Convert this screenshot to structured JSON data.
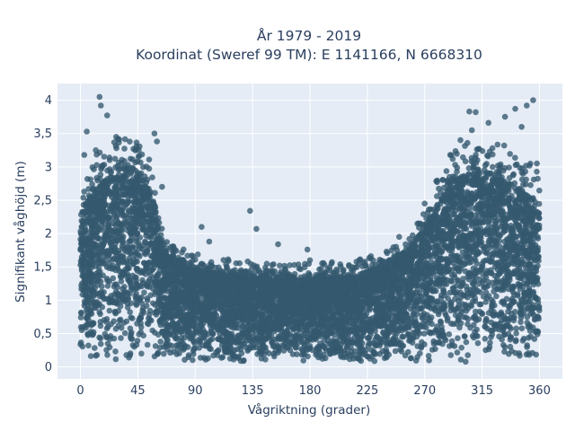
{
  "chart_data": {
    "type": "scatter",
    "title_line1": "År 1979 - 2019",
    "title_line2": "Koordinat (Sweref 99 TM): E 1141166, N 6668310",
    "xlabel": "Vågriktning (grader)",
    "ylabel": "Signifikant våghöjd (m)",
    "xlim": [
      -18,
      378
    ],
    "ylim": [
      -0.18,
      4.25
    ],
    "x_ticks": [
      0,
      45,
      90,
      135,
      180,
      225,
      270,
      315,
      360
    ],
    "x_tick_labels": [
      "0",
      "45",
      "90",
      "135",
      "180",
      "225",
      "270",
      "315",
      "360"
    ],
    "y_ticks": [
      0,
      0.5,
      1,
      1.5,
      2,
      2.5,
      3,
      3.5,
      4
    ],
    "y_tick_labels": [
      "0",
      "0,5",
      "1",
      "1,5",
      "2",
      "2,5",
      "3",
      "3,5",
      "4"
    ],
    "grid": true,
    "marker_color": "#34586e",
    "plot_bgcolor": "#e5ecf6",
    "envelope": [
      {
        "x": 0,
        "y": 2.3
      },
      {
        "x": 10,
        "y": 2.6
      },
      {
        "x": 20,
        "y": 2.8
      },
      {
        "x": 30,
        "y": 2.9
      },
      {
        "x": 40,
        "y": 2.9
      },
      {
        "x": 50,
        "y": 2.8
      },
      {
        "x": 58,
        "y": 2.4
      },
      {
        "x": 62,
        "y": 1.9
      },
      {
        "x": 70,
        "y": 1.6
      },
      {
        "x": 90,
        "y": 1.45
      },
      {
        "x": 120,
        "y": 1.35
      },
      {
        "x": 150,
        "y": 1.3
      },
      {
        "x": 180,
        "y": 1.3
      },
      {
        "x": 210,
        "y": 1.35
      },
      {
        "x": 240,
        "y": 1.5
      },
      {
        "x": 260,
        "y": 1.8
      },
      {
        "x": 275,
        "y": 2.2
      },
      {
        "x": 290,
        "y": 2.7
      },
      {
        "x": 305,
        "y": 2.9
      },
      {
        "x": 320,
        "y": 2.9
      },
      {
        "x": 340,
        "y": 2.7
      },
      {
        "x": 355,
        "y": 2.5
      },
      {
        "x": 360,
        "y": 2.3
      }
    ],
    "outliers": [
      {
        "x": 15,
        "y": 4.05
      },
      {
        "x": 16,
        "y": 3.92
      },
      {
        "x": 21,
        "y": 3.77
      },
      {
        "x": 5,
        "y": 3.53
      },
      {
        "x": 28,
        "y": 3.45
      },
      {
        "x": 58,
        "y": 3.5
      },
      {
        "x": 60,
        "y": 3.38
      },
      {
        "x": 3,
        "y": 3.18
      },
      {
        "x": 12,
        "y": 3.25
      },
      {
        "x": 64,
        "y": 2.7
      },
      {
        "x": 133,
        "y": 2.34
      },
      {
        "x": 138,
        "y": 2.07
      },
      {
        "x": 95,
        "y": 2.1
      },
      {
        "x": 101,
        "y": 1.88
      },
      {
        "x": 155,
        "y": 1.84
      },
      {
        "x": 178,
        "y": 1.76
      },
      {
        "x": 180,
        "y": 1.6
      },
      {
        "x": 240,
        "y": 1.73
      },
      {
        "x": 355,
        "y": 4.0
      },
      {
        "x": 350,
        "y": 3.92
      },
      {
        "x": 341,
        "y": 3.87
      },
      {
        "x": 333,
        "y": 3.75
      },
      {
        "x": 310,
        "y": 3.82
      },
      {
        "x": 305,
        "y": 3.83
      },
      {
        "x": 307,
        "y": 3.55
      },
      {
        "x": 298,
        "y": 3.4
      },
      {
        "x": 346,
        "y": 3.6
      },
      {
        "x": 320,
        "y": 3.66
      },
      {
        "x": 290,
        "y": 3.18
      },
      {
        "x": 358,
        "y": 3.05
      },
      {
        "x": 270,
        "y": 2.45
      },
      {
        "x": 250,
        "y": 1.95
      }
    ]
  }
}
